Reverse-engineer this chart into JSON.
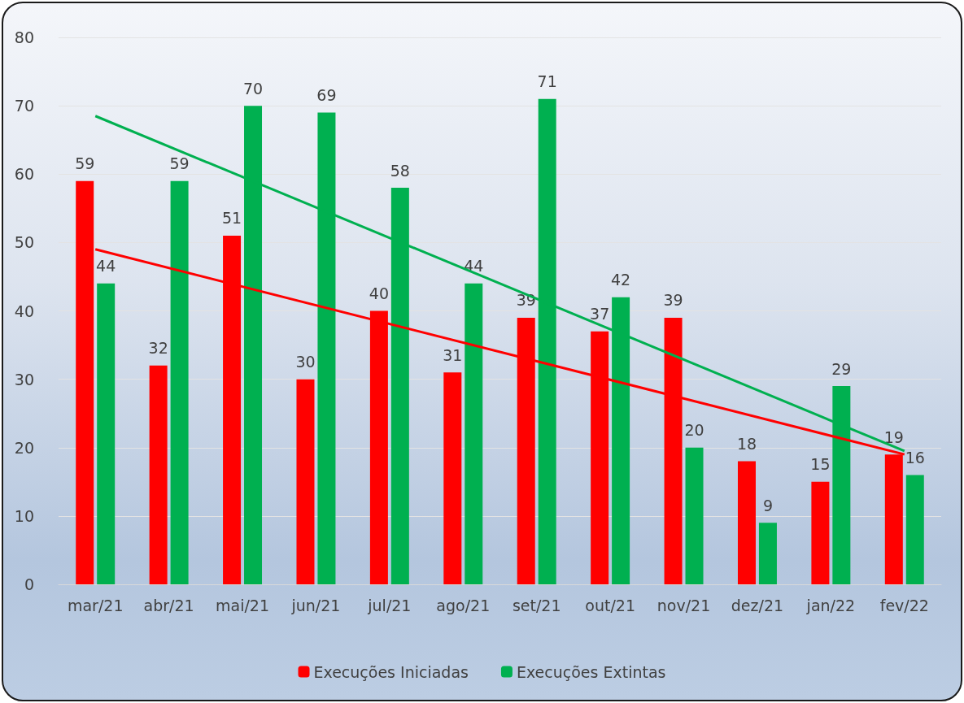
{
  "chart_data": {
    "type": "bar",
    "categories": [
      "mar/21",
      "abr/21",
      "mai/21",
      "jun/21",
      "jul/21",
      "ago/21",
      "set/21",
      "out/21",
      "nov/21",
      "dez/21",
      "jan/22",
      "fev/22"
    ],
    "series": [
      {
        "name": "Execuções Iniciadas",
        "color": "#ff0000",
        "values": [
          59,
          32,
          51,
          30,
          40,
          31,
          39,
          37,
          39,
          18,
          15,
          19
        ],
        "value_labels": [
          "59",
          "32",
          "51",
          "30",
          "40",
          "31",
          "39",
          "37",
          "39",
          "18",
          "15",
          "19"
        ]
      },
      {
        "name": "Execuções Extintas",
        "color": "#00b050",
        "values": [
          44,
          59,
          70,
          69,
          58,
          44,
          71,
          42,
          20,
          9,
          29,
          16
        ],
        "value_labels": [
          "44",
          "59",
          "70",
          "69",
          "58",
          "44",
          "71",
          "42",
          "20",
          "9",
          "29",
          "16"
        ]
      },
      {
        "type": "line",
        "color": "#ff0000",
        "x": [
          "mar/21",
          "fev/22"
        ],
        "values": [
          49,
          19
        ]
      },
      {
        "type": "line",
        "color": "#00b050",
        "x": [
          "mar/21",
          "fev/22"
        ],
        "values": [
          68.5,
          19.5
        ]
      }
    ],
    "ylim": [
      0,
      80
    ],
    "yticks": [
      0,
      10,
      20,
      30,
      40,
      50,
      60,
      70,
      80
    ],
    "grid": "y",
    "legend": "bottom",
    "marker": "none"
  }
}
